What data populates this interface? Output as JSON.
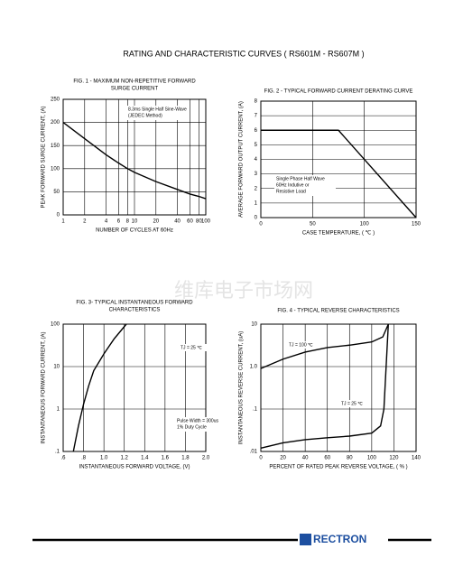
{
  "page": {
    "title": "RATING AND CHARACTERISTIC CURVES ( RS601M - RS607M )",
    "watermark": "维库电子市场网",
    "logo": "RECTRON"
  },
  "chart_data": [
    {
      "type": "line",
      "title": [
        "FIG. 1 - MAXIMUM NON-REPETITIVE FORWARD",
        "SURGE CURRENT"
      ],
      "xlabel": "NUMBER OF CYCLES AT 60Hz",
      "ylabel": "PEAK FORWARD SURGE CURRENT, (A)",
      "xscale": "log",
      "xlim": [
        1,
        100
      ],
      "xticks": [
        1,
        2,
        4,
        6,
        8,
        10,
        20,
        40,
        60,
        80,
        100
      ],
      "ylim": [
        0,
        250
      ],
      "yticks": [
        0,
        50,
        100,
        150,
        200,
        250
      ],
      "grid": true,
      "annotation": [
        "8.3ms Single Half Sine-Wave",
        "(JEDEC Method)"
      ],
      "series": [
        {
          "color": "#000000",
          "x": [
            1,
            2,
            4,
            6,
            8,
            10,
            20,
            40,
            60,
            80,
            100
          ],
          "values": [
            200,
            165,
            130,
            112,
            100,
            92,
            72,
            55,
            45,
            40,
            35
          ]
        }
      ]
    },
    {
      "type": "line",
      "title": [
        "FIG. 2 - TYPICAL FORWARD CURRENT DERATING CURVE"
      ],
      "xlabel": "CASE TEMPERATURE, ( ℃ )",
      "ylabel": "AVERAGE FORWARD OUTPUT CURRENT, (A)",
      "xlim": [
        0,
        150
      ],
      "xticks": [
        0,
        50,
        100,
        150
      ],
      "ylim": [
        0,
        8
      ],
      "yticks": [
        0,
        1,
        2,
        3,
        4,
        5,
        6,
        7,
        8
      ],
      "grid": true,
      "annotation": [
        "Single Phase Half Wave",
        "60Hz Indutive or",
        "Resistive Load"
      ],
      "series": [
        {
          "color": "#000000",
          "x": [
            0,
            75,
            150
          ],
          "values": [
            6,
            6,
            0
          ]
        }
      ]
    },
    {
      "type": "line",
      "title": [
        "FIG. 3- TYPICAL INSTANTANEOUS FORWARD",
        "CHARACTERISTICS"
      ],
      "xlabel": "INSTANTANEOUS FORWARD VOLTAGE, (V)",
      "ylabel": "INSTANTANEOUS FORWARD CURRENT, (A)",
      "xlim": [
        0.6,
        2.0
      ],
      "xticks": [
        {
          "value": 0.6,
          "label": ".6"
        },
        {
          "value": 0.8,
          "label": ".8"
        },
        {
          "value": 1.0,
          "label": "1.0"
        },
        {
          "value": 1.2,
          "label": "1.2"
        },
        {
          "value": 1.4,
          "label": "1.4"
        },
        {
          "value": 1.6,
          "label": "1.6"
        },
        {
          "value": 1.8,
          "label": "1.8"
        },
        {
          "value": 2.0,
          "label": "2.0"
        }
      ],
      "yscale": "log",
      "ylim": [
        0.1,
        100
      ],
      "yticks": [
        {
          "value": 0.1,
          "label": ".1"
        },
        1,
        10,
        100
      ],
      "grid": true,
      "annotation": [
        "Pulse Width = 300us",
        "1% Duty Cycle"
      ],
      "series": [
        {
          "name": "TJ = 25 ℃",
          "color": "#000000",
          "x": [
            0.7,
            0.75,
            0.8,
            0.85,
            0.9,
            1.0,
            1.1,
            1.22
          ],
          "values": [
            0.1,
            0.4,
            1.3,
            3.5,
            8,
            20,
            45,
            100
          ]
        }
      ]
    },
    {
      "type": "line",
      "title": [
        "FIG. 4 - TYPICAL REVERSE CHARACTERISTICS"
      ],
      "xlabel": "PERCENT OF RATED PEAK REVERSE VOLTAGE, ( % )",
      "ylabel": "INSTANTANEOUS REVERSE CURRENT, (uA)",
      "xlim": [
        0,
        140
      ],
      "xticks": [
        0,
        20,
        40,
        60,
        80,
        100,
        120,
        140
      ],
      "yscale": "log",
      "ylim": [
        0.01,
        10
      ],
      "yticks": [
        {
          "value": 0.01,
          "label": ".01"
        },
        {
          "value": 0.1,
          "label": ".1"
        },
        {
          "value": 1.0,
          "label": "1.0"
        },
        10
      ],
      "grid": true,
      "series": [
        {
          "name": "TJ = 100 ℃",
          "color": "#000000",
          "x": [
            0,
            20,
            40,
            60,
            80,
            100,
            110,
            115
          ],
          "values": [
            0.9,
            1.5,
            2.2,
            2.8,
            3.2,
            3.8,
            5,
            10
          ]
        },
        {
          "name": "TJ = 25 ℃",
          "color": "#000000",
          "x": [
            0,
            20,
            40,
            60,
            80,
            100,
            108,
            111,
            113,
            115
          ],
          "values": [
            0.012,
            0.016,
            0.019,
            0.021,
            0.023,
            0.027,
            0.04,
            0.1,
            1,
            10
          ]
        }
      ]
    }
  ]
}
